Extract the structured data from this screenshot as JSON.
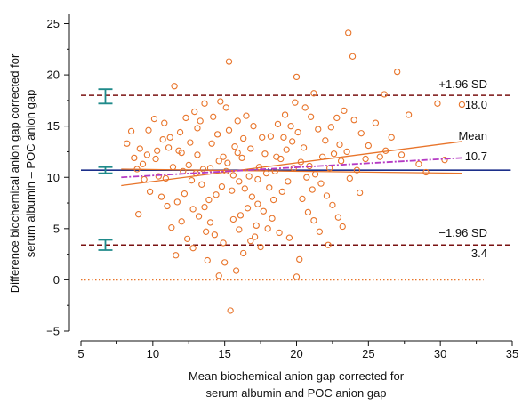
{
  "chart_data": {
    "type": "scatter",
    "title": "",
    "xlabel": [
      "Mean biochemical anion gap corrected for",
      "serum albumin and POC anion gap"
    ],
    "ylabel": [
      "Difference biochemical anion gap corrected for",
      "serum albumin – POC anion gap"
    ],
    "xlim": [
      5,
      35
    ],
    "ylim": [
      -6,
      26
    ],
    "xticks": [
      "5",
      "10",
      "15",
      "20",
      "25",
      "30",
      "35"
    ],
    "yticks": [
      "−5",
      "0",
      "5",
      "10",
      "15",
      "20",
      "25"
    ],
    "grid": false,
    "reference_lines": [
      {
        "name": "upper_loa",
        "label": "+1.96 SD",
        "value_label": "18.0",
        "y": 18.0,
        "style": "dashed",
        "color": "#7a1212"
      },
      {
        "name": "mean",
        "label": "Mean",
        "value_label": "10.7",
        "y": 10.7,
        "style": "solid",
        "color": "#1c2f8a"
      },
      {
        "name": "lower_loa",
        "label": "−1.96 SD",
        "value_label": "3.4",
        "y": 3.4,
        "style": "dashed",
        "color": "#7a1212"
      },
      {
        "name": "zero",
        "label": "",
        "value_label": "",
        "y": 0,
        "style": "dotted",
        "color": "#e8742a"
      }
    ],
    "ci_markers": [
      {
        "x": 6.7,
        "y_low": 17.2,
        "y_high": 18.6,
        "color": "#1f8a8a"
      },
      {
        "x": 6.7,
        "y_low": 10.4,
        "y_high": 11.0,
        "color": "#1f8a8a"
      },
      {
        "x": 6.7,
        "y_low": 2.9,
        "y_high": 3.9,
        "color": "#1f8a8a"
      }
    ],
    "regression_lines": [
      {
        "x": [
          7.8,
          31.5
        ],
        "y": [
          9.2,
          13.5
        ],
        "color": "#e8742a",
        "style": "solid"
      },
      {
        "x": [
          7.8,
          31.5
        ],
        "y": [
          10.8,
          10.4
        ],
        "color": "#e8742a",
        "style": "solid"
      },
      {
        "x": [
          7.8,
          31.5
        ],
        "y": [
          10.0,
          11.9
        ],
        "color": "#b53bc4",
        "style": "dashdot"
      }
    ],
    "points_color": "#e8742a",
    "points": [
      [
        11.5,
        18.9
      ],
      [
        15.3,
        21.3
      ],
      [
        20.0,
        19.8
      ],
      [
        23.6,
        24.1
      ],
      [
        23.9,
        21.8
      ],
      [
        27.0,
        20.3
      ],
      [
        26.1,
        18.1
      ],
      [
        29.8,
        17.2
      ],
      [
        31.5,
        17.1
      ],
      [
        27.8,
        16.1
      ],
      [
        21.2,
        18.2
      ],
      [
        8.2,
        13.3
      ],
      [
        8.5,
        14.5
      ],
      [
        9.1,
        12.8
      ],
      [
        9.6,
        12.2
      ],
      [
        9.3,
        11.3
      ],
      [
        8.9,
        10.8
      ],
      [
        10.4,
        10.1
      ],
      [
        9.8,
        8.6
      ],
      [
        9.0,
        6.4
      ],
      [
        10.8,
        15.3
      ],
      [
        11.2,
        13.9
      ],
      [
        11.8,
        12.6
      ],
      [
        12.3,
        15.8
      ],
      [
        12.9,
        16.4
      ],
      [
        12.5,
        11.2
      ],
      [
        13.0,
        10.4
      ],
      [
        13.4,
        9.3
      ],
      [
        12.2,
        8.4
      ],
      [
        11.7,
        7.6
      ],
      [
        11.3,
        5.1
      ],
      [
        11.6,
        2.4
      ],
      [
        12.4,
        4.0
      ],
      [
        12.8,
        3.1
      ],
      [
        13.2,
        6.2
      ],
      [
        13.6,
        7.1
      ],
      [
        14.0,
        5.6
      ],
      [
        14.3,
        4.4
      ],
      [
        13.8,
        1.9
      ],
      [
        14.6,
        0.4
      ],
      [
        15.0,
        1.7
      ],
      [
        15.4,
        -3.0
      ],
      [
        15.8,
        0.9
      ],
      [
        16.3,
        2.6
      ],
      [
        16.8,
        3.8
      ],
      [
        17.2,
        5.3
      ],
      [
        14.1,
        13.3
      ],
      [
        14.5,
        14.2
      ],
      [
        14.9,
        12.0
      ],
      [
        15.2,
        11.4
      ],
      [
        15.6,
        10.2
      ],
      [
        16.0,
        9.6
      ],
      [
        16.4,
        8.9
      ],
      [
        16.9,
        8.1
      ],
      [
        17.3,
        7.4
      ],
      [
        17.7,
        6.7
      ],
      [
        18.1,
        9.0
      ],
      [
        18.5,
        10.6
      ],
      [
        18.9,
        11.8
      ],
      [
        19.3,
        12.7
      ],
      [
        19.7,
        13.5
      ],
      [
        20.1,
        14.4
      ],
      [
        20.5,
        12.9
      ],
      [
        20.9,
        11.1
      ],
      [
        21.3,
        10.3
      ],
      [
        21.7,
        9.4
      ],
      [
        22.1,
        8.2
      ],
      [
        22.5,
        7.3
      ],
      [
        22.9,
        6.1
      ],
      [
        23.2,
        5.2
      ],
      [
        19.5,
        4.1
      ],
      [
        20.2,
        2.0
      ],
      [
        20.0,
        0.3
      ],
      [
        18.8,
        4.6
      ],
      [
        18.3,
        6.0
      ],
      [
        17.6,
        13.9
      ],
      [
        17.0,
        15.0
      ],
      [
        16.5,
        16.0
      ],
      [
        15.9,
        15.5
      ],
      [
        15.1,
        16.8
      ],
      [
        14.7,
        17.4
      ],
      [
        14.2,
        15.9
      ],
      [
        13.6,
        17.2
      ],
      [
        13.1,
        14.8
      ],
      [
        12.6,
        13.4
      ],
      [
        12.0,
        12.4
      ],
      [
        11.4,
        11.0
      ],
      [
        10.9,
        9.9
      ],
      [
        10.6,
        8.1
      ],
      [
        10.2,
        11.8
      ],
      [
        9.7,
        14.6
      ],
      [
        10.1,
        15.7
      ],
      [
        22.4,
        14.9
      ],
      [
        22.8,
        15.8
      ],
      [
        23.3,
        16.5
      ],
      [
        24.0,
        15.6
      ],
      [
        24.5,
        14.3
      ],
      [
        25.0,
        13.1
      ],
      [
        25.5,
        15.3
      ],
      [
        26.2,
        12.6
      ],
      [
        24.8,
        11.8
      ],
      [
        24.2,
        10.7
      ],
      [
        23.7,
        9.9
      ],
      [
        23.1,
        11.6
      ],
      [
        22.6,
        12.3
      ],
      [
        22.0,
        13.6
      ],
      [
        21.5,
        14.7
      ],
      [
        21.0,
        15.9
      ],
      [
        20.6,
        16.8
      ],
      [
        19.9,
        17.3
      ],
      [
        19.2,
        16.1
      ],
      [
        18.7,
        15.2
      ],
      [
        18.2,
        14.0
      ],
      [
        17.8,
        12.3
      ],
      [
        17.4,
        11.0
      ],
      [
        16.7,
        10.1
      ],
      [
        16.2,
        11.9
      ],
      [
        15.7,
        13.0
      ],
      [
        15.3,
        14.6
      ],
      [
        14.8,
        9.1
      ],
      [
        14.4,
        8.3
      ],
      [
        13.9,
        7.8
      ],
      [
        13.5,
        10.8
      ],
      [
        13.1,
        12.2
      ],
      [
        12.7,
        9.7
      ],
      [
        12.1,
        10.6
      ],
      [
        11.9,
        14.4
      ],
      [
        11.1,
        12.9
      ],
      [
        10.7,
        13.7
      ],
      [
        10.3,
        12.6
      ],
      [
        9.4,
        9.8
      ],
      [
        8.7,
        11.9
      ],
      [
        16.1,
        6.3
      ],
      [
        16.6,
        7.0
      ],
      [
        17.1,
        4.2
      ],
      [
        17.5,
        3.2
      ],
      [
        18.0,
        5.0
      ],
      [
        18.4,
        7.8
      ],
      [
        19.0,
        8.6
      ],
      [
        19.4,
        9.6
      ],
      [
        19.8,
        10.9
      ],
      [
        20.4,
        7.9
      ],
      [
        20.8,
        6.6
      ],
      [
        21.2,
        5.8
      ],
      [
        21.6,
        4.7
      ],
      [
        22.2,
        3.4
      ],
      [
        14.0,
        10.9
      ],
      [
        14.6,
        11.6
      ],
      [
        15.1,
        10.6
      ],
      [
        15.5,
        8.7
      ],
      [
        15.9,
        12.4
      ],
      [
        16.3,
        13.8
      ],
      [
        16.8,
        12.8
      ],
      [
        17.3,
        9.8
      ],
      [
        17.9,
        10.4
      ],
      [
        18.6,
        12.0
      ],
      [
        19.1,
        13.9
      ],
      [
        19.6,
        15.0
      ],
      [
        20.3,
        11.5
      ],
      [
        20.7,
        10.0
      ],
      [
        21.1,
        8.8
      ],
      [
        21.8,
        12.0
      ],
      [
        22.3,
        10.9
      ],
      [
        23.0,
        13.2
      ],
      [
        23.5,
        12.5
      ],
      [
        24.4,
        8.5
      ],
      [
        25.8,
        12.0
      ],
      [
        26.6,
        13.9
      ],
      [
        27.3,
        12.2
      ],
      [
        28.5,
        11.3
      ],
      [
        29.0,
        10.5
      ],
      [
        30.3,
        11.7
      ],
      [
        13.3,
        15.5
      ],
      [
        12.8,
        6.9
      ],
      [
        13.7,
        4.7
      ],
      [
        14.9,
        3.6
      ],
      [
        15.6,
        5.9
      ],
      [
        16.0,
        4.9
      ],
      [
        12.0,
        5.7
      ],
      [
        11.0,
        7.2
      ]
    ]
  }
}
